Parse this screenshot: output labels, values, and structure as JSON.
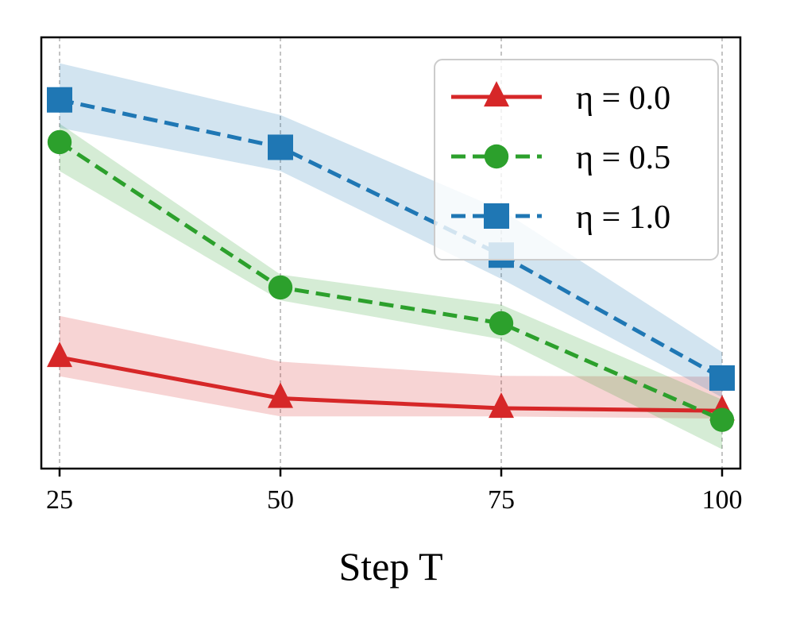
{
  "chart_data": {
    "type": "line",
    "title": "",
    "xlabel": "Step T",
    "ylabel": "",
    "x": [
      25,
      50,
      75,
      100
    ],
    "x_tick_labels": [
      "25",
      "50",
      "75",
      "100"
    ],
    "y_ticks_shown": false,
    "ylim": [
      0.0,
      1.0
    ],
    "grid": "vertical dashed",
    "legend_position": "top-right",
    "series": [
      {
        "name": "η = 0.0",
        "color": "#d62728",
        "marker": "triangle",
        "linestyle": "solid",
        "values": [
          0.258,
          0.163,
          0.14,
          0.134
        ],
        "band_upper": [
          0.354,
          0.248,
          0.215,
          0.213
        ],
        "band_lower": [
          0.214,
          0.121,
          0.121,
          0.116
        ]
      },
      {
        "name": "η = 0.5",
        "color": "#2ca02c",
        "marker": "circle",
        "linestyle": "dashed",
        "values": [
          0.757,
          0.42,
          0.337,
          0.113
        ],
        "band_upper": [
          0.8,
          0.45,
          0.38,
          0.16
        ],
        "band_lower": [
          0.69,
          0.39,
          0.3,
          0.045
        ]
      },
      {
        "name": "η = 1.0",
        "color": "#1f77b4",
        "marker": "square",
        "linestyle": "dashed",
        "values": [
          0.855,
          0.745,
          0.495,
          0.21
        ],
        "band_upper": [
          0.94,
          0.82,
          0.6,
          0.27
        ],
        "band_lower": [
          0.79,
          0.69,
          0.44,
          0.165
        ]
      }
    ]
  }
}
